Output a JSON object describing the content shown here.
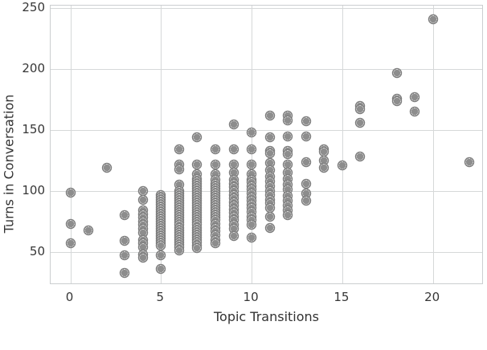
{
  "figure": {
    "xlabel": "Topic Transitions",
    "ylabel": "Turns in Conversation"
  },
  "colors": {
    "background": "#ffffff",
    "grid": "#d6d8d9",
    "spine": "#cbced0",
    "text": "#333333",
    "marker_fill": "#8d8d8d",
    "marker_edge": "#7d7d7d"
  },
  "chart_data": {
    "type": "scatter",
    "title": "",
    "xlabel": "Topic Transitions",
    "ylabel": "Turns in Conversation",
    "xlim": [
      -1.09,
      22.81
    ],
    "ylim": [
      22.9,
      252.2
    ],
    "xticks": [
      0,
      5,
      10,
      15,
      20
    ],
    "yticks": [
      50,
      100,
      150,
      200,
      250
    ],
    "grid": true,
    "legend_position": "none",
    "points": [
      [
        0,
        99
      ],
      [
        0,
        73
      ],
      [
        0,
        57
      ],
      [
        1,
        68
      ],
      [
        2,
        119
      ],
      [
        3,
        80
      ],
      [
        3,
        59
      ],
      [
        3,
        47
      ],
      [
        3,
        33
      ],
      [
        4,
        100
      ],
      [
        4,
        93
      ],
      [
        4,
        84
      ],
      [
        4,
        81
      ],
      [
        4,
        78
      ],
      [
        4,
        75
      ],
      [
        4,
        72
      ],
      [
        4,
        69
      ],
      [
        4,
        66
      ],
      [
        4,
        60
      ],
      [
        4,
        57
      ],
      [
        4,
        54
      ],
      [
        4,
        48
      ],
      [
        4,
        45
      ],
      [
        5,
        97
      ],
      [
        5,
        95
      ],
      [
        5,
        93
      ],
      [
        5,
        91
      ],
      [
        5,
        89
      ],
      [
        5,
        87
      ],
      [
        5,
        85
      ],
      [
        5,
        83
      ],
      [
        5,
        81
      ],
      [
        5,
        79
      ],
      [
        5,
        77
      ],
      [
        5,
        75
      ],
      [
        5,
        73
      ],
      [
        5,
        71
      ],
      [
        5,
        69
      ],
      [
        5,
        67
      ],
      [
        5,
        65
      ],
      [
        5,
        63
      ],
      [
        5,
        61
      ],
      [
        5,
        59
      ],
      [
        5,
        57
      ],
      [
        5,
        55
      ],
      [
        5,
        47
      ],
      [
        5,
        36
      ],
      [
        6,
        134
      ],
      [
        6,
        122
      ],
      [
        6,
        118
      ],
      [
        6,
        105
      ],
      [
        6,
        100
      ],
      [
        6,
        98
      ],
      [
        6,
        96
      ],
      [
        6,
        94
      ],
      [
        6,
        92
      ],
      [
        6,
        90
      ],
      [
        6,
        88
      ],
      [
        6,
        86
      ],
      [
        6,
        84
      ],
      [
        6,
        82
      ],
      [
        6,
        80
      ],
      [
        6,
        78
      ],
      [
        6,
        76
      ],
      [
        6,
        74
      ],
      [
        6,
        72
      ],
      [
        6,
        70
      ],
      [
        6,
        68
      ],
      [
        6,
        66
      ],
      [
        6,
        64
      ],
      [
        6,
        62
      ],
      [
        6,
        60
      ],
      [
        6,
        58
      ],
      [
        6,
        56
      ],
      [
        6,
        54
      ],
      [
        6,
        51
      ],
      [
        7,
        144
      ],
      [
        7,
        122
      ],
      [
        7,
        114
      ],
      [
        7,
        110
      ],
      [
        7,
        108
      ],
      [
        7,
        106
      ],
      [
        7,
        104
      ],
      [
        7,
        102
      ],
      [
        7,
        100
      ],
      [
        7,
        98
      ],
      [
        7,
        96
      ],
      [
        7,
        94
      ],
      [
        7,
        92
      ],
      [
        7,
        90
      ],
      [
        7,
        88
      ],
      [
        7,
        86
      ],
      [
        7,
        84
      ],
      [
        7,
        82
      ],
      [
        7,
        80
      ],
      [
        7,
        78
      ],
      [
        7,
        76
      ],
      [
        7,
        74
      ],
      [
        7,
        72
      ],
      [
        7,
        70
      ],
      [
        7,
        68
      ],
      [
        7,
        66
      ],
      [
        7,
        64
      ],
      [
        7,
        62
      ],
      [
        7,
        60
      ],
      [
        7,
        58
      ],
      [
        7,
        55
      ],
      [
        7,
        53
      ],
      [
        8,
        134
      ],
      [
        8,
        122
      ],
      [
        8,
        114
      ],
      [
        8,
        109
      ],
      [
        8,
        106
      ],
      [
        8,
        104
      ],
      [
        8,
        102
      ],
      [
        8,
        100
      ],
      [
        8,
        98
      ],
      [
        8,
        96
      ],
      [
        8,
        94
      ],
      [
        8,
        92
      ],
      [
        8,
        90
      ],
      [
        8,
        88
      ],
      [
        8,
        86
      ],
      [
        8,
        84
      ],
      [
        8,
        82
      ],
      [
        8,
        80
      ],
      [
        8,
        78
      ],
      [
        8,
        76
      ],
      [
        8,
        73
      ],
      [
        8,
        70
      ],
      [
        8,
        67
      ],
      [
        8,
        64
      ],
      [
        8,
        60
      ],
      [
        8,
        57
      ],
      [
        9,
        155
      ],
      [
        9,
        134
      ],
      [
        9,
        122
      ],
      [
        9,
        115
      ],
      [
        9,
        109
      ],
      [
        9,
        106
      ],
      [
        9,
        103
      ],
      [
        9,
        100
      ],
      [
        9,
        97
      ],
      [
        9,
        94
      ],
      [
        9,
        91
      ],
      [
        9,
        88
      ],
      [
        9,
        85
      ],
      [
        9,
        82
      ],
      [
        9,
        79
      ],
      [
        9,
        76
      ],
      [
        9,
        72
      ],
      [
        9,
        69
      ],
      [
        9,
        63
      ],
      [
        10,
        148
      ],
      [
        10,
        134
      ],
      [
        10,
        122
      ],
      [
        10,
        114
      ],
      [
        10,
        109
      ],
      [
        10,
        107
      ],
      [
        10,
        104
      ],
      [
        10,
        101
      ],
      [
        10,
        98
      ],
      [
        10,
        95
      ],
      [
        10,
        92
      ],
      [
        10,
        89
      ],
      [
        10,
        86
      ],
      [
        10,
        83
      ],
      [
        10,
        79
      ],
      [
        10,
        76
      ],
      [
        10,
        72
      ],
      [
        10,
        62
      ],
      [
        11,
        162
      ],
      [
        11,
        144
      ],
      [
        11,
        133
      ],
      [
        11,
        131
      ],
      [
        11,
        123
      ],
      [
        11,
        117
      ],
      [
        11,
        112
      ],
      [
        11,
        108
      ],
      [
        11,
        104
      ],
      [
        11,
        100
      ],
      [
        11,
        97
      ],
      [
        11,
        93
      ],
      [
        11,
        90
      ],
      [
        11,
        86
      ],
      [
        11,
        79
      ],
      [
        11,
        70
      ],
      [
        12,
        162
      ],
      [
        12,
        158
      ],
      [
        12,
        145
      ],
      [
        12,
        133
      ],
      [
        12,
        130
      ],
      [
        12,
        122
      ],
      [
        12,
        115
      ],
      [
        12,
        110
      ],
      [
        12,
        105
      ],
      [
        12,
        101
      ],
      [
        12,
        96
      ],
      [
        12,
        92
      ],
      [
        12,
        88
      ],
      [
        12,
        84
      ],
      [
        12,
        80
      ],
      [
        13,
        157
      ],
      [
        13,
        145
      ],
      [
        13,
        124
      ],
      [
        13,
        106
      ],
      [
        13,
        98
      ],
      [
        13,
        92
      ],
      [
        14,
        134
      ],
      [
        14,
        132
      ],
      [
        14,
        125
      ],
      [
        14,
        119
      ],
      [
        15,
        121
      ],
      [
        16,
        170
      ],
      [
        16,
        167
      ],
      [
        16,
        156
      ],
      [
        16,
        128
      ],
      [
        18,
        197
      ],
      [
        18,
        176
      ],
      [
        18,
        174
      ],
      [
        19,
        177
      ],
      [
        19,
        165
      ],
      [
        20,
        241
      ],
      [
        22,
        124
      ]
    ]
  }
}
